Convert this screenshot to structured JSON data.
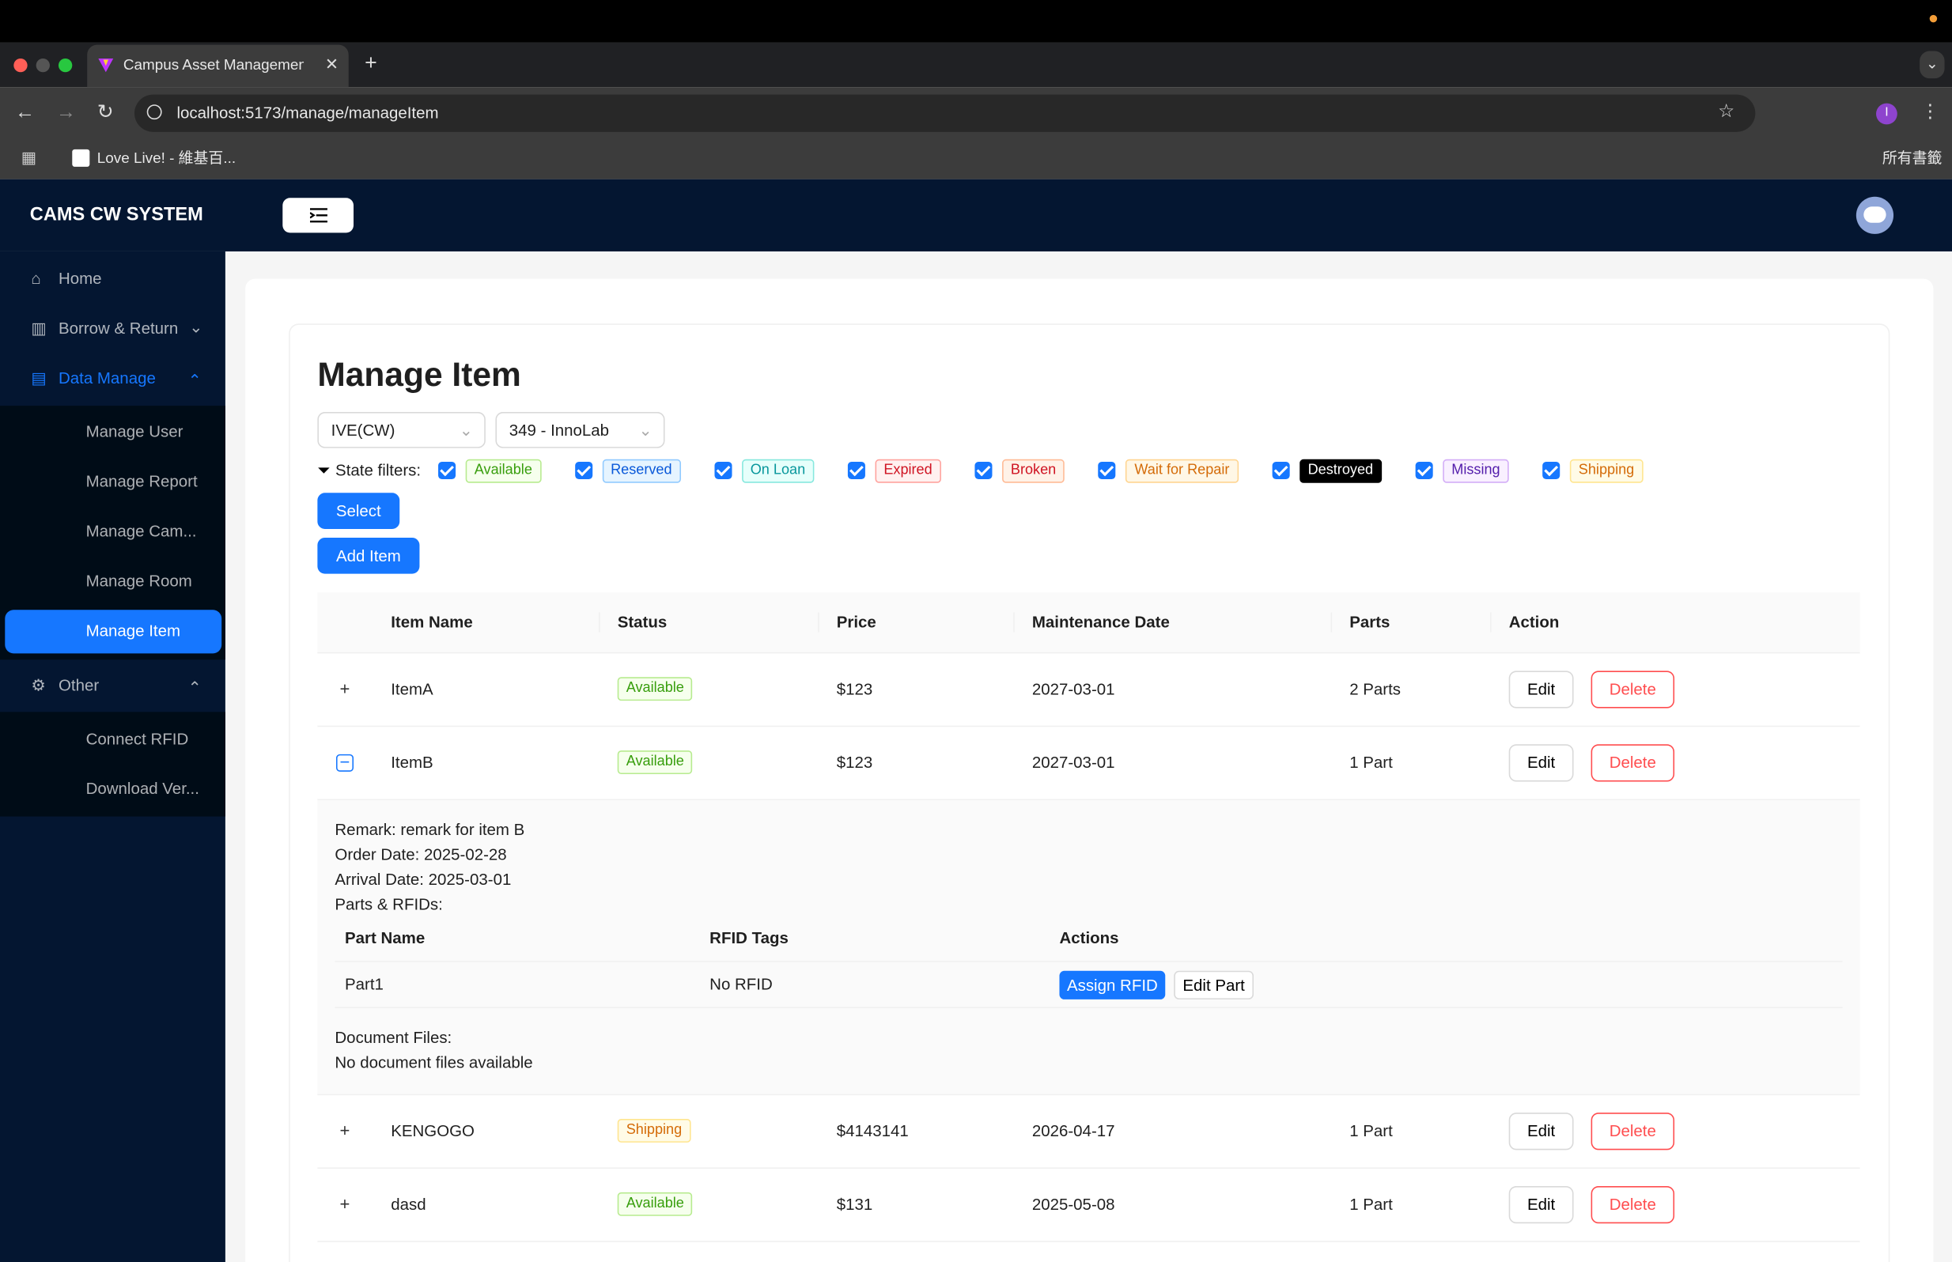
{
  "browser": {
    "tab_title": "Campus Asset Management S",
    "url": "localhost:5173/manage/manageItem",
    "bookmarks": [
      "Love Live! - 維基百...",
      "所有書籤"
    ],
    "profile": "I"
  },
  "app": {
    "brand": "CAMS CW SYSTEM"
  },
  "sidebar": {
    "home": "Home",
    "borrow": "Borrow & Return",
    "data_manage": "Data Manage",
    "data_children": [
      "Manage User",
      "Manage Report",
      "Manage Cam...",
      "Manage Room",
      "Manage Item"
    ],
    "other": "Other",
    "other_children": [
      "Connect RFID",
      "Download Ver..."
    ]
  },
  "page": {
    "title": "Manage Item",
    "selects": [
      "IVE(CW)",
      "349 - InnoLab"
    ],
    "filter_label": "State filters:",
    "filters": [
      {
        "label": "Available",
        "color": "#389e0d",
        "bg": "#f6ffed",
        "border": "#b7eb8f"
      },
      {
        "label": "Reserved",
        "color": "#0958d9",
        "bg": "#e6f4ff",
        "border": "#91caff"
      },
      {
        "label": "On Loan",
        "color": "#08979c",
        "bg": "#e6fffb",
        "border": "#87e8de"
      },
      {
        "label": "Expired",
        "color": "#cf1322",
        "bg": "#fff1f0",
        "border": "#ffa39e"
      },
      {
        "label": "Broken",
        "color": "#cf1322",
        "bg": "#fff2e8",
        "border": "#ffbb96"
      },
      {
        "label": "Wait for Repair",
        "color": "#d46b08",
        "bg": "#fff7e6",
        "border": "#ffd591"
      },
      {
        "label": "Destroyed",
        "color": "#ffffff",
        "bg": "#000000",
        "border": "#000000"
      },
      {
        "label": "Missing",
        "color": "#531dab",
        "bg": "#f9f0ff",
        "border": "#d3adf7"
      },
      {
        "label": "Shipping",
        "color": "#d46b08",
        "bg": "#fffbe6",
        "border": "#ffe58f"
      }
    ],
    "select_button": "Select",
    "add_button": "Add Item"
  },
  "table": {
    "headers": [
      "Item Name",
      "Status",
      "Price",
      "Maintenance Date",
      "Parts",
      "Action"
    ],
    "actions": [
      "Edit",
      "Delete"
    ],
    "rows": [
      {
        "name": "ItemA",
        "status": "Available",
        "price": "$123",
        "date": "2027-03-01",
        "parts": "2 Parts"
      },
      {
        "name": "ItemB",
        "status": "Available",
        "price": "$123",
        "date": "2027-03-01",
        "parts": "1 Part",
        "details": {
          "lines": [
            "Remark: remark for item B",
            "Order Date: 2025-02-28",
            "Arrival Date: 2025-03-01",
            "Parts & RFIDs:"
          ],
          "parts_headers": [
            "Part Name",
            "RFID Tags",
            "Actions"
          ],
          "parts_rows": [
            [
              "Part1",
              "No RFID"
            ]
          ],
          "part_actions": [
            "Assign RFID",
            "Edit Part"
          ],
          "documents_label": "Document Files:",
          "documents_text": "No document files available"
        }
      },
      {
        "name": "KENGOGO",
        "status": "Shipping",
        "price": "$4143141",
        "date": "2026-04-17",
        "parts": "1 Part"
      },
      {
        "name": "dasd",
        "status": "Available",
        "price": "$131",
        "date": "2025-05-08",
        "parts": "1 Part"
      }
    ]
  }
}
